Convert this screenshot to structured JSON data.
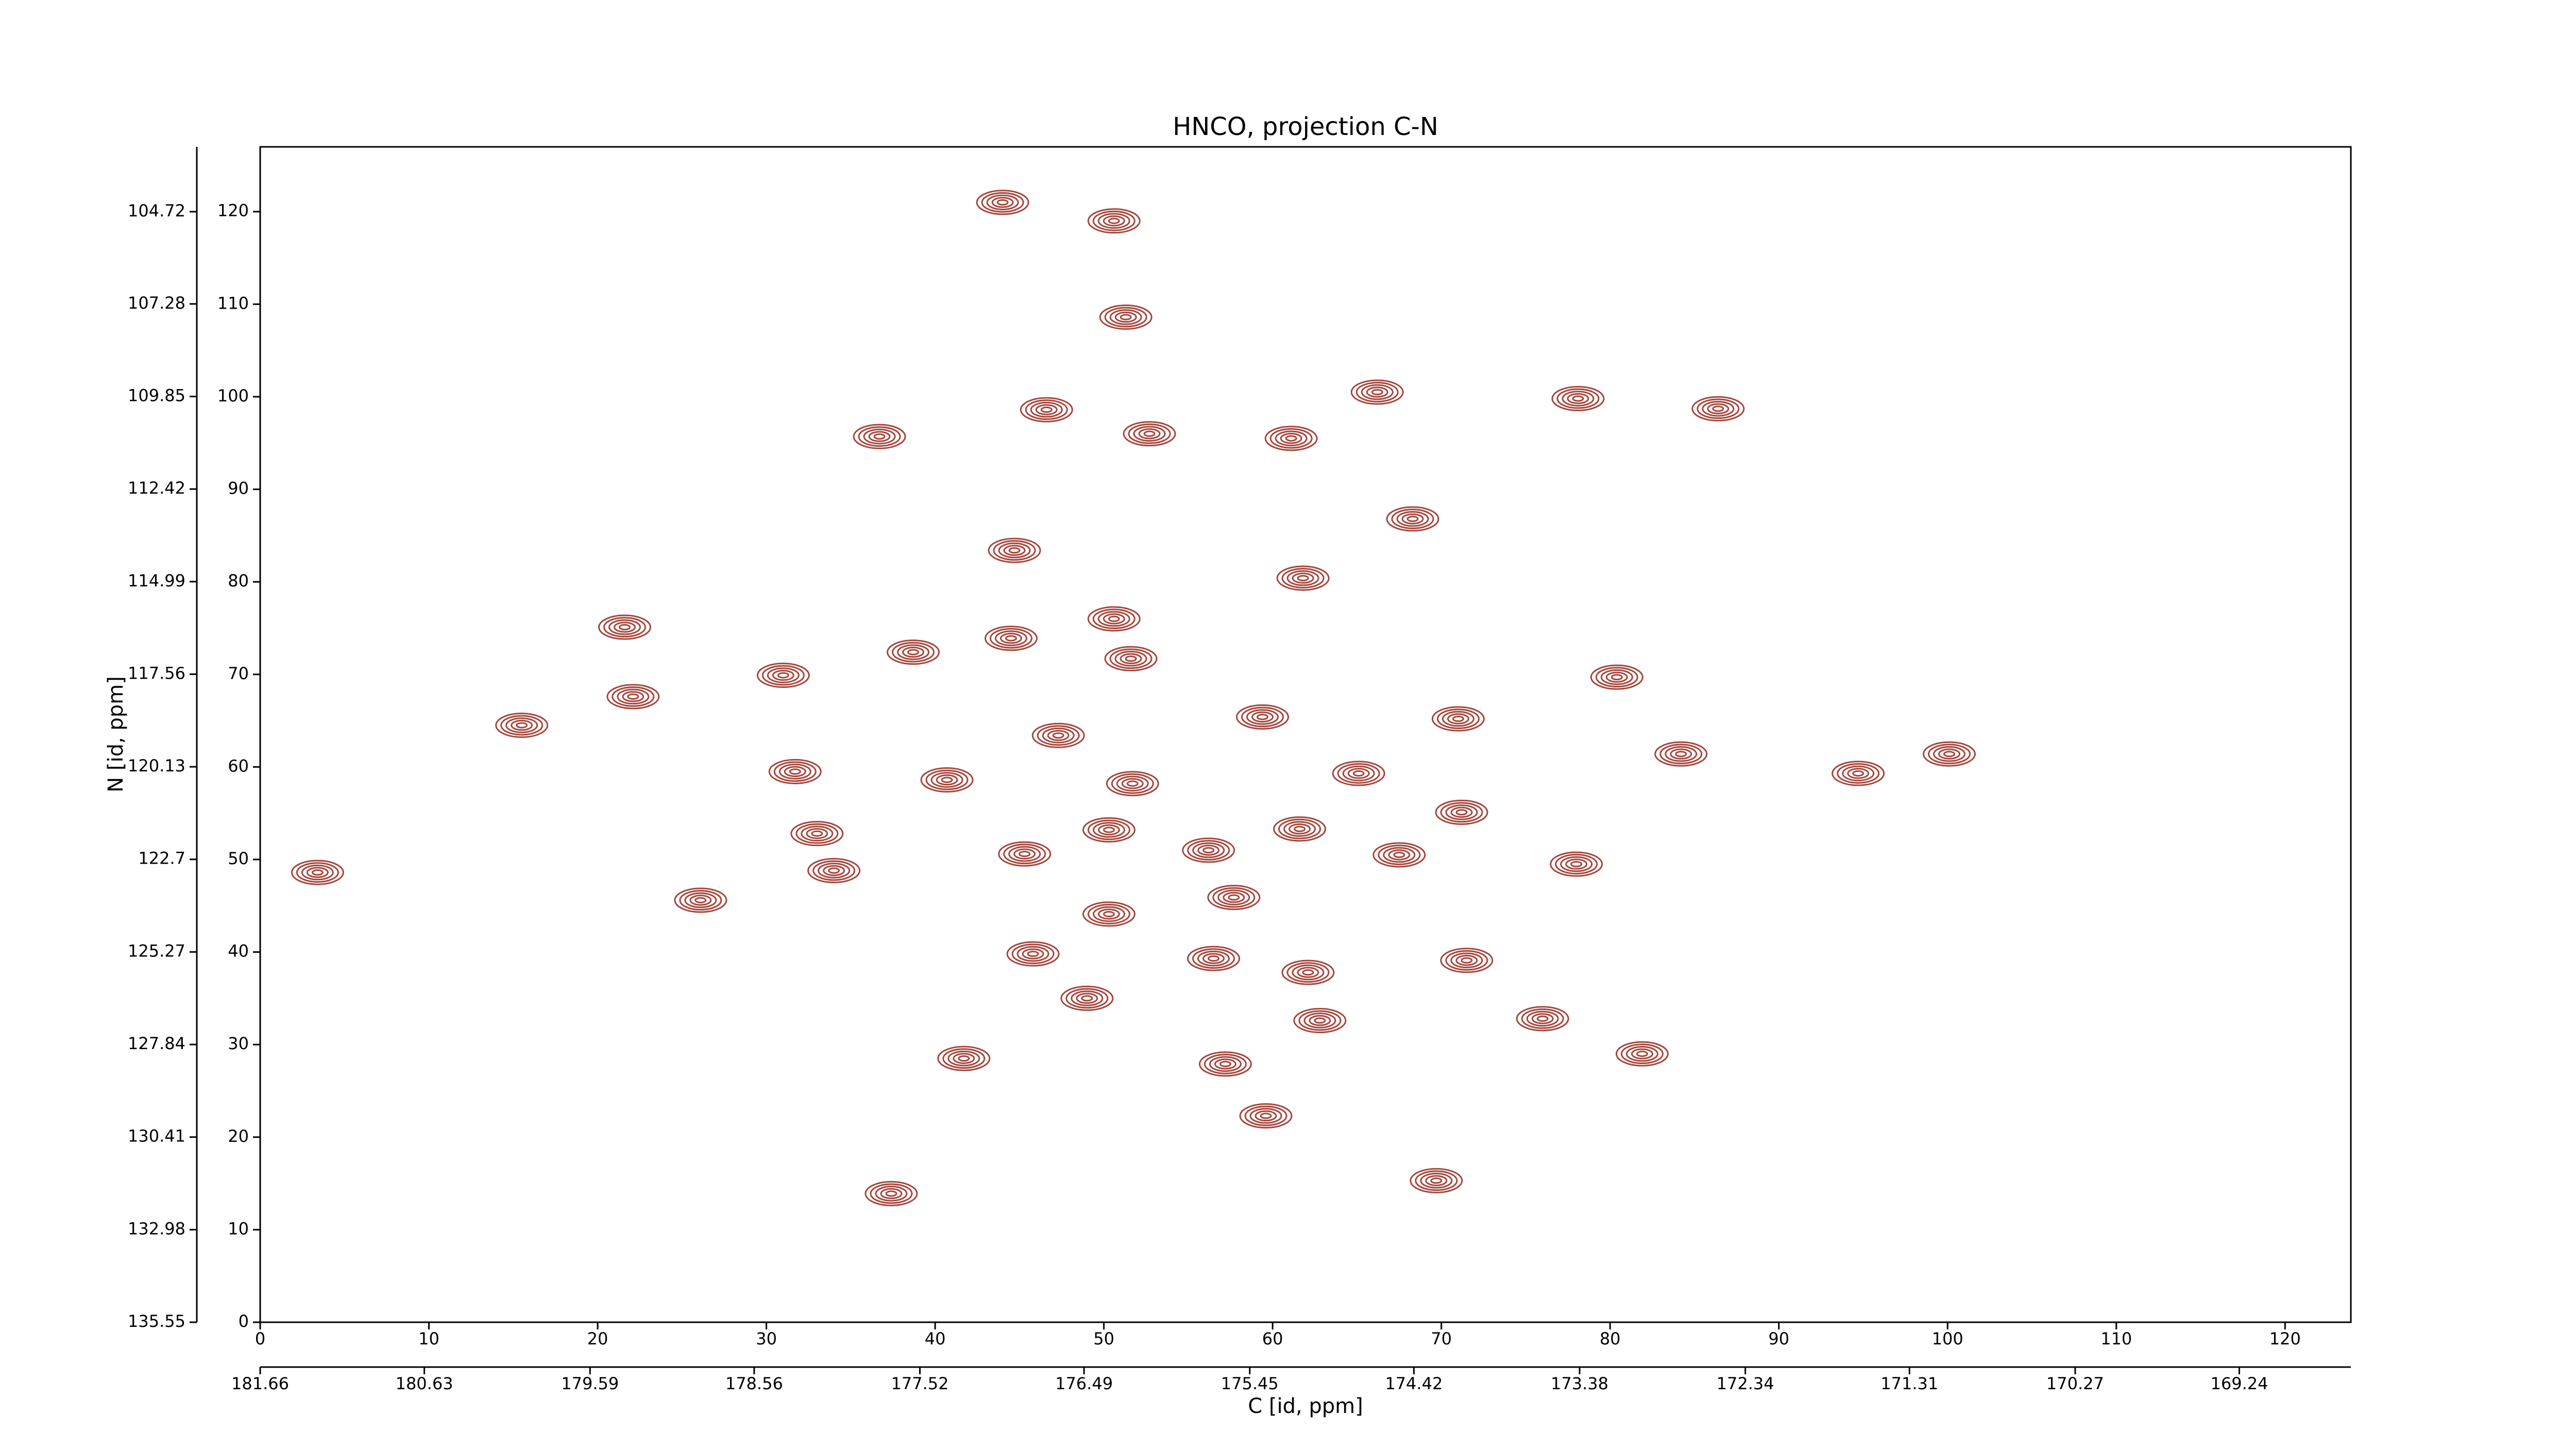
{
  "chart_data": {
    "type": "contour",
    "title": "HNCO, projection C-N",
    "xlabel": "C [id, ppm]",
    "ylabel": "N [id, ppm]",
    "color": "#a5453b",
    "xlim": [
      0,
      123.9
    ],
    "xticks": [
      0,
      10,
      20,
      30,
      40,
      50,
      60,
      70,
      80,
      90,
      100,
      110,
      120
    ],
    "ylim": [
      0,
      127
    ],
    "yticks": [
      0,
      10,
      20,
      30,
      40,
      50,
      60,
      70,
      80,
      90,
      100,
      110,
      120
    ],
    "x2lim": [
      181.66,
      168.54
    ],
    "x2ticks": [
      181.66,
      180.63,
      179.59,
      178.56,
      177.52,
      176.49,
      175.45,
      174.42,
      173.38,
      172.34,
      171.31,
      170.27,
      169.24
    ],
    "y2lim": [
      135.55,
      102.92
    ],
    "y2ticks": [
      135.55,
      132.98,
      130.41,
      127.84,
      125.27,
      122.7,
      120.13,
      117.56,
      114.99,
      112.42,
      109.85,
      107.28,
      104.72
    ],
    "peaks": [
      {
        "x": 44,
        "y": 121
      },
      {
        "x": 50.6,
        "y": 119
      },
      {
        "x": 51.3,
        "y": 108.6
      },
      {
        "x": 46.6,
        "y": 98.6
      },
      {
        "x": 36.7,
        "y": 95.7
      },
      {
        "x": 52.7,
        "y": 96
      },
      {
        "x": 61.1,
        "y": 95.5
      },
      {
        "x": 66.2,
        "y": 100.5
      },
      {
        "x": 78.1,
        "y": 99.8
      },
      {
        "x": 86.4,
        "y": 98.7
      },
      {
        "x": 68.3,
        "y": 86.8
      },
      {
        "x": 44.7,
        "y": 83.4
      },
      {
        "x": 61.8,
        "y": 80.4
      },
      {
        "x": 21.6,
        "y": 75.1
      },
      {
        "x": 50.6,
        "y": 76
      },
      {
        "x": 38.7,
        "y": 72.4
      },
      {
        "x": 44.5,
        "y": 73.9
      },
      {
        "x": 51.6,
        "y": 71.7
      },
      {
        "x": 31,
        "y": 69.9
      },
      {
        "x": 15.5,
        "y": 64.5
      },
      {
        "x": 22.1,
        "y": 67.6
      },
      {
        "x": 47.3,
        "y": 63.4
      },
      {
        "x": 59.4,
        "y": 65.4
      },
      {
        "x": 71,
        "y": 65.2
      },
      {
        "x": 80.4,
        "y": 69.7
      },
      {
        "x": 84.2,
        "y": 61.4
      },
      {
        "x": 94.7,
        "y": 59.3
      },
      {
        "x": 100.1,
        "y": 61.4
      },
      {
        "x": 31.7,
        "y": 59.5
      },
      {
        "x": 40.7,
        "y": 58.6
      },
      {
        "x": 51.7,
        "y": 58.2
      },
      {
        "x": 65.1,
        "y": 59.3
      },
      {
        "x": 71.2,
        "y": 55.1
      },
      {
        "x": 3.4,
        "y": 48.6
      },
      {
        "x": 33,
        "y": 52.8
      },
      {
        "x": 34,
        "y": 48.8
      },
      {
        "x": 45.3,
        "y": 50.6
      },
      {
        "x": 50.3,
        "y": 53.2
      },
      {
        "x": 56.2,
        "y": 51
      },
      {
        "x": 61.6,
        "y": 53.3
      },
      {
        "x": 67.5,
        "y": 50.5
      },
      {
        "x": 78,
        "y": 49.5
      },
      {
        "x": 57.7,
        "y": 45.9
      },
      {
        "x": 26.1,
        "y": 45.6
      },
      {
        "x": 50.3,
        "y": 44.1
      },
      {
        "x": 45.8,
        "y": 39.8
      },
      {
        "x": 56.5,
        "y": 39.3
      },
      {
        "x": 62.1,
        "y": 37.8
      },
      {
        "x": 71.5,
        "y": 39.1
      },
      {
        "x": 49,
        "y": 35
      },
      {
        "x": 62.8,
        "y": 32.6
      },
      {
        "x": 76,
        "y": 32.8
      },
      {
        "x": 57.2,
        "y": 27.9
      },
      {
        "x": 41.7,
        "y": 28.5
      },
      {
        "x": 81.9,
        "y": 29
      },
      {
        "x": 59.6,
        "y": 22.3
      },
      {
        "x": 69.7,
        "y": 15.3
      },
      {
        "x": 37.4,
        "y": 13.9
      }
    ]
  }
}
